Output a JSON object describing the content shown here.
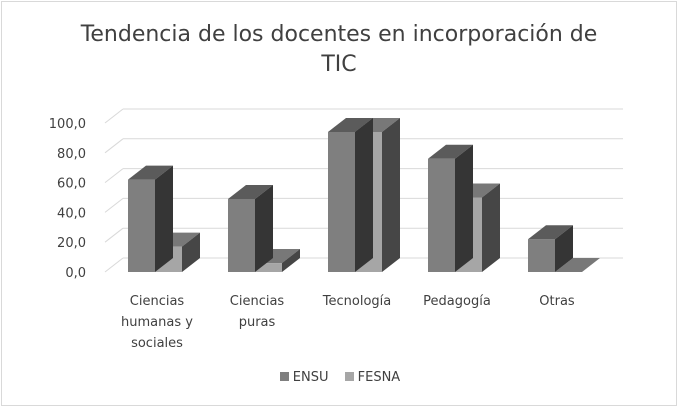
{
  "chart_data": {
    "type": "bar",
    "title_lines": [
      "Tendencia de los docentes en incorporación de",
      "TIC"
    ],
    "categories": [
      [
        "Ciencias",
        "humanas y",
        "sociales"
      ],
      [
        "Ciencias",
        "puras"
      ],
      [
        "Tecnología"
      ],
      [
        "Pedagogía"
      ],
      [
        "Otras"
      ]
    ],
    "series": [
      {
        "name": "ENSU",
        "values": [
          62.0,
          49.0,
          94.0,
          76.0,
          22.0
        ]
      },
      {
        "name": "FESNA",
        "values": [
          17.0,
          6.0,
          94.0,
          50.0,
          0.0
        ]
      }
    ],
    "y_ticks": [
      "0,0",
      "20,0",
      "40,0",
      "60,0",
      "80,0",
      "100,0"
    ],
    "ylim": [
      0,
      100
    ],
    "grid": true,
    "legend_position": "bottom",
    "colors": {
      "ENSU": "#7f7f7f",
      "FESNA": "#a6a6a6"
    }
  }
}
